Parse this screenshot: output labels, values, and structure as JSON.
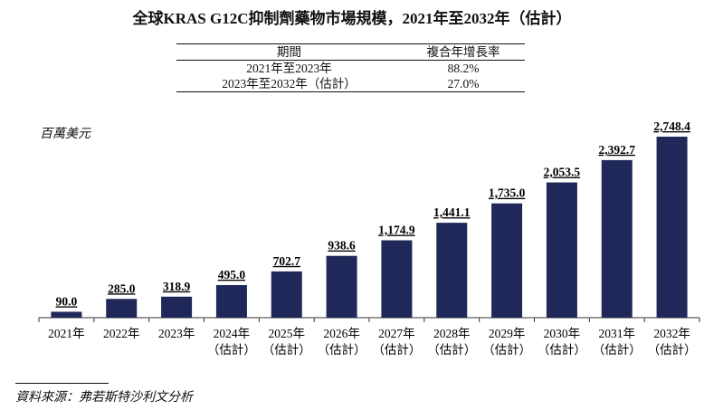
{
  "chart_data": {
    "type": "bar",
    "title": "全球KRAS G12C抑制劑藥物市場規模，2021年至2032年（估計）",
    "ylabel": "百萬美元",
    "categories": [
      [
        "2021年",
        ""
      ],
      [
        "2022年",
        ""
      ],
      [
        "2023年",
        ""
      ],
      [
        "2024年",
        "（估計）"
      ],
      [
        "2025年",
        "（估計）"
      ],
      [
        "2026年",
        "（估計）"
      ],
      [
        "2027年",
        "（估計）"
      ],
      [
        "2028年",
        "（估計）"
      ],
      [
        "2029年",
        "（估計）"
      ],
      [
        "2030年",
        "（估計）"
      ],
      [
        "2031年",
        "（估計）"
      ],
      [
        "2032年",
        "（估計）"
      ]
    ],
    "values": [
      90.0,
      285.0,
      318.9,
      495.0,
      702.7,
      938.6,
      1174.9,
      1441.1,
      1735.0,
      2053.5,
      2392.7,
      2748.4
    ],
    "value_labels": [
      "90.0",
      "285.0",
      "318.9",
      "495.0",
      "702.7",
      "938.6",
      "1,174.9",
      "1,441.1",
      "1,735.0",
      "2,053.5",
      "2,392.7",
      "2,748.4"
    ],
    "ylim": [
      0,
      2748.4
    ],
    "grid": false,
    "bar_color": "#1f2858"
  },
  "cagr_table": {
    "headers": [
      "期間",
      "複合年增長率"
    ],
    "rows": [
      [
        "2021年至2023年",
        "88.2%"
      ],
      [
        "2023年至2032年（估計）",
        "27.0%"
      ]
    ]
  },
  "source": "資料來源：弗若斯特沙利文分析"
}
